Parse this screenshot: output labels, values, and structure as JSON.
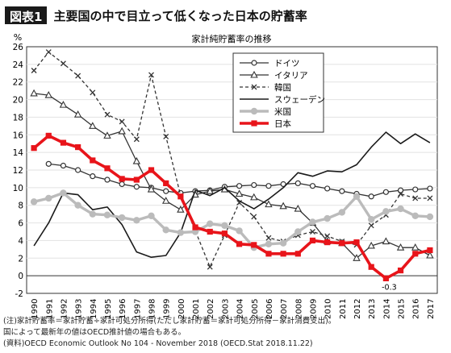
{
  "header": {
    "figure_label": "図表1",
    "title": "主要国の中で目立って低くなった日本の貯蓄率"
  },
  "notes": [
    "(注)家計貯蓄率＝家計貯蓄÷家計可処分所得(ただし家計貯蓄＝家計可処分所得－家計消費支出)。",
    "国によって最新年の値はOECD推計値の場合もある。",
    "(資料)OECD Economic Outlook No 104 - November 2018 (OECD.Stat 2018.11.22)"
  ],
  "chart_data": {
    "type": "line",
    "title": "家計純貯蓄率の推移",
    "ylabel": "%",
    "ylim": [
      -2,
      26
    ],
    "yticks": [
      -2,
      0,
      2,
      4,
      6,
      8,
      10,
      12,
      14,
      16,
      18,
      20,
      22,
      24,
      26
    ],
    "x": [
      "1990",
      "1991",
      "1992",
      "1993",
      "1994",
      "1995",
      "1996",
      "1997",
      "1998",
      "1999",
      "2000",
      "2001",
      "2002",
      "2003",
      "2004",
      "2005",
      "2006",
      "2007",
      "2008",
      "2009",
      "2010",
      "2011",
      "2012",
      "2013",
      "2014",
      "2015",
      "2016",
      "2017"
    ],
    "legend_position": "top-right",
    "series": [
      {
        "name": "ドイツ",
        "color": "#333333",
        "marker": "circle",
        "dash": "solid",
        "width": 1.3,
        "values": [
          null,
          12.7,
          12.5,
          12.0,
          11.3,
          10.9,
          10.4,
          10.1,
          10.0,
          9.6,
          9.4,
          9.6,
          9.7,
          10.1,
          10.2,
          10.3,
          10.2,
          10.4,
          10.5,
          10.2,
          9.9,
          9.6,
          9.3,
          9.0,
          9.5,
          9.7,
          9.8,
          9.9
        ]
      },
      {
        "name": "イタリア",
        "color": "#333333",
        "marker": "triangle",
        "dash": "solid",
        "width": 1.3,
        "values": [
          20.7,
          20.5,
          19.4,
          18.3,
          17.0,
          15.9,
          16.4,
          13.0,
          9.8,
          8.5,
          7.5,
          9.2,
          9.6,
          9.8,
          9.3,
          8.9,
          8.1,
          7.9,
          7.6,
          6.0,
          3.9,
          3.7,
          2.0,
          3.4,
          3.9,
          3.2,
          3.2,
          2.3
        ]
      },
      {
        "name": "韓国",
        "color": "#333333",
        "marker": "x",
        "dash": "dashed",
        "width": 1.3,
        "values": [
          23.3,
          25.4,
          24.1,
          22.7,
          20.8,
          18.3,
          17.5,
          15.5,
          22.8,
          15.8,
          9.1,
          5.1,
          1.0,
          4.6,
          8.3,
          6.7,
          4.3,
          3.9,
          4.6,
          5.0,
          4.5,
          3.9,
          3.5,
          5.7,
          6.9,
          9.3,
          8.8,
          8.8
        ]
      },
      {
        "name": "スウェーデン",
        "color": "#1a1a1a",
        "marker": "none",
        "dash": "solid",
        "width": 1.6,
        "values": [
          3.4,
          6.0,
          9.4,
          9.2,
          7.5,
          7.8,
          5.8,
          2.7,
          2.1,
          2.3,
          4.9,
          9.7,
          9.1,
          10.0,
          8.5,
          7.6,
          8.7,
          10.0,
          11.7,
          11.3,
          11.9,
          11.8,
          12.6,
          14.6,
          16.3,
          15.0,
          16.1,
          15.1
        ]
      },
      {
        "name": "米国",
        "color": "#bbbbbb",
        "marker": "circle",
        "dash": "solid",
        "width": 3.4,
        "values": [
          8.4,
          8.8,
          9.4,
          8.0,
          7.0,
          6.9,
          6.6,
          6.3,
          6.8,
          5.2,
          4.9,
          5.0,
          5.9,
          5.7,
          5.1,
          3.2,
          3.6,
          3.7,
          5.0,
          6.1,
          6.5,
          7.2,
          9.0,
          6.4,
          7.3,
          7.6,
          6.8,
          6.7
        ]
      },
      {
        "name": "日本",
        "color": "#e8141a",
        "marker": "square",
        "dash": "solid",
        "width": 3.6,
        "values": [
          14.5,
          15.9,
          15.1,
          14.6,
          13.1,
          12.2,
          11.0,
          10.9,
          12.0,
          10.5,
          9.0,
          5.5,
          5.0,
          4.8,
          3.6,
          3.5,
          2.5,
          2.5,
          2.5,
          4.0,
          3.8,
          3.7,
          3.8,
          1.0,
          -0.3,
          0.6,
          2.5,
          2.9
        ]
      }
    ],
    "annotations": [
      {
        "x": "2014",
        "y": -0.3,
        "text": "-0.3"
      }
    ]
  }
}
